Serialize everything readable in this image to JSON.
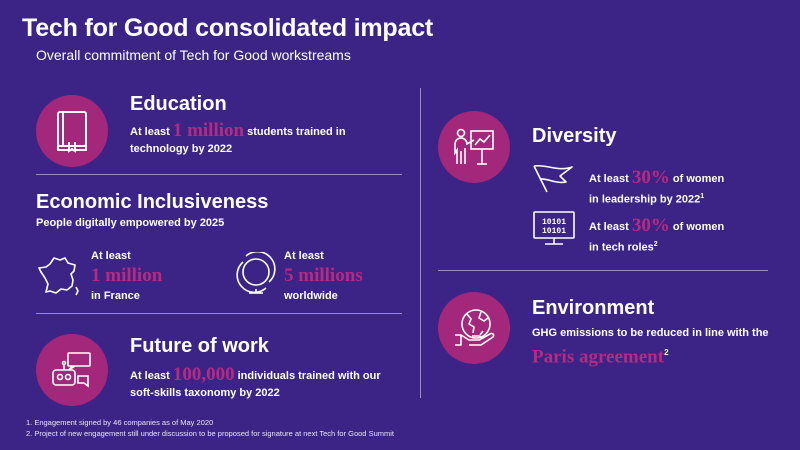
{
  "header": {
    "title": "Tech for Good consolidated impact",
    "subtitle": "Overall commitment of Tech for Good workstreams"
  },
  "education": {
    "title": "Education",
    "prefix": "At least",
    "value": "1 million",
    "suffix": "students trained in",
    "line2": "technology by 2022"
  },
  "economic": {
    "title": "Economic Inclusiveness",
    "subtitle": "People digitally empowered by 2025",
    "france": {
      "prefix": "At least",
      "value": "1 million",
      "label": "in France"
    },
    "world": {
      "prefix": "At least",
      "value": "5 millions",
      "label": "worldwide"
    }
  },
  "future": {
    "title": "Future of work",
    "prefix": "At least",
    "value": "100,000",
    "suffix": "individuals trained with our",
    "line2": "soft-skills taxonomy by 2022"
  },
  "diversity": {
    "title": "Diversity",
    "leadership": {
      "prefix": "At least",
      "value": "30%",
      "suffix": "of women",
      "line2": "in leadership by 2022",
      "sup": "1"
    },
    "tech": {
      "prefix": "At least",
      "value": "30%",
      "suffix": "of women",
      "line2": "in tech roles",
      "sup": "2",
      "screen_text": "10101"
    }
  },
  "environment": {
    "title": "Environment",
    "line1": "GHG emissions to be reduced in line with the",
    "value": "Paris agreement",
    "sup": "2"
  },
  "footnotes": [
    "1.  Engagement signed by 46 companies as of May 2020",
    "2.  Project of new engagement still under discussion to be proposed for signature at next Tech for Good Summit"
  ],
  "colors": {
    "background": "#3b2486",
    "accent": "#b72a82",
    "circle": "#a3277a"
  },
  "icons": [
    "book-icon",
    "france-map-icon",
    "globe-icon",
    "robot-chat-icon",
    "presentation-icon",
    "flag-icon",
    "binary-monitor-icon",
    "earth-hand-icon"
  ]
}
